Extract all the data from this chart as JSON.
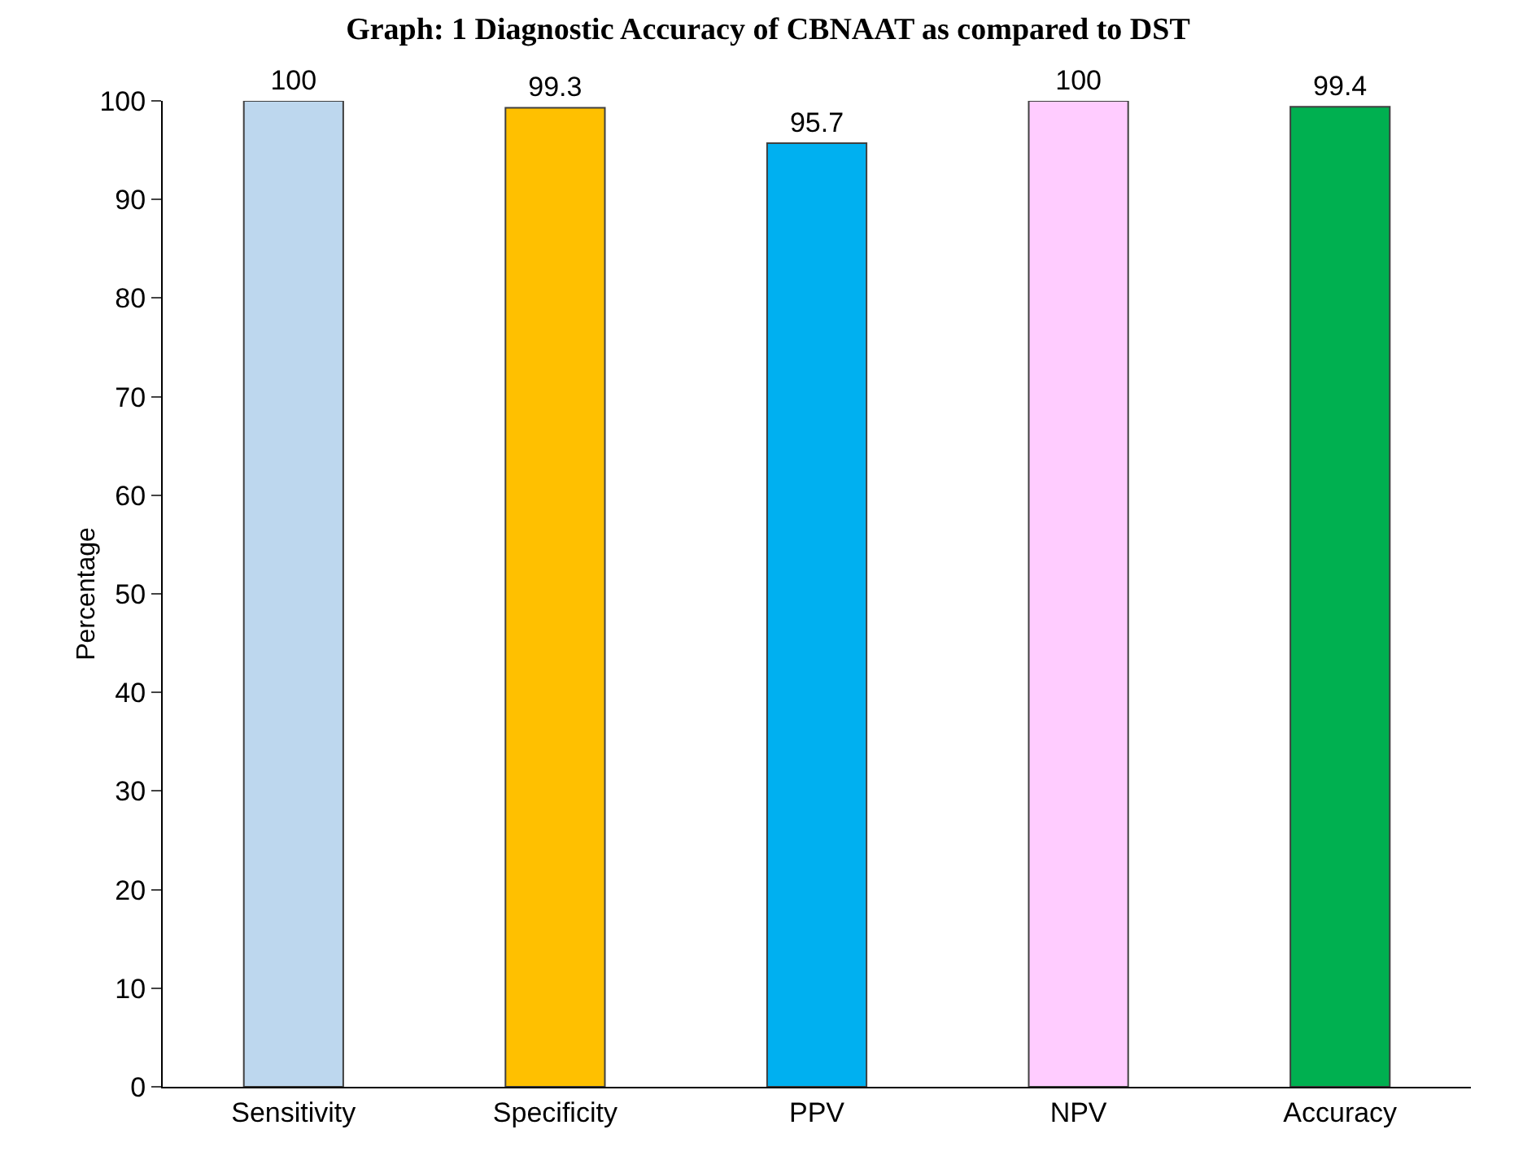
{
  "chart_data": {
    "type": "bar",
    "title": "Graph: 1 Diagnostic Accuracy of CBNAAT as compared to DST",
    "ylabel": "Percentage",
    "categories": [
      "Sensitivity",
      "Specificity",
      "PPV",
      "NPV",
      "Accuracy"
    ],
    "values": [
      100,
      99.3,
      95.7,
      100,
      99.4
    ],
    "colors": [
      "#bdd7ee",
      "#ffc000",
      "#00b0f0",
      "#ffccff",
      "#00b050"
    ],
    "ylim": [
      0,
      100
    ],
    "yticks": [
      0,
      10,
      20,
      30,
      40,
      50,
      60,
      70,
      80,
      90,
      100
    ],
    "grid": false,
    "data_labels": true
  }
}
